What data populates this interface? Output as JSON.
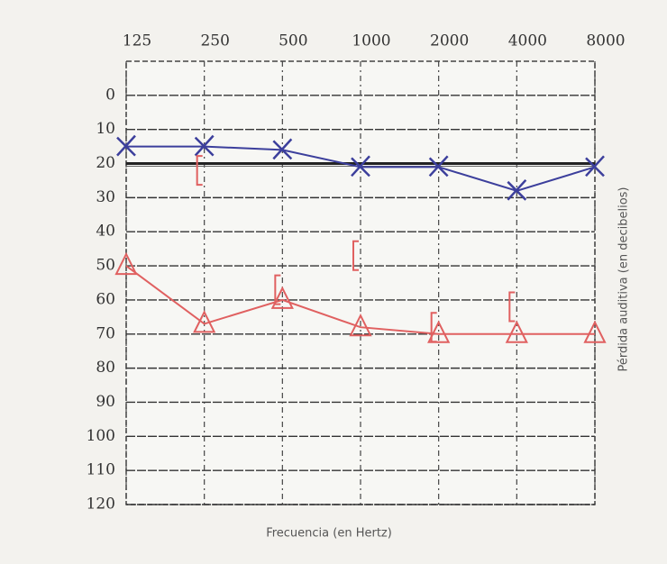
{
  "chart_data": {
    "type": "line",
    "x_label": "Frecuencia (en Hertz)",
    "y_label": "Pérdida auditiva (en decibelios)",
    "categories": [
      "125",
      "250",
      "500",
      "1000",
      "2000",
      "4000",
      "8000"
    ],
    "series": [
      {
        "color": "#3c3f9c",
        "marker": "x",
        "line": true,
        "values": [
          15,
          15,
          16,
          21,
          21,
          28,
          21
        ]
      },
      {
        "color": "#e06060",
        "marker": "triangle",
        "line": true,
        "values": [
          50,
          67,
          60,
          68,
          70,
          70,
          70
        ]
      },
      {
        "color": "#e06060",
        "marker": "bracket",
        "line": false,
        "values": [
          null,
          22,
          57,
          47,
          68,
          62,
          null
        ]
      }
    ],
    "reference_line": 20,
    "ylim": [
      -10,
      120
    ],
    "y_inverted": true,
    "yticks": [
      0,
      10,
      20,
      30,
      40,
      50,
      60,
      70,
      80,
      90,
      100,
      110,
      120
    ],
    "grid": true
  }
}
